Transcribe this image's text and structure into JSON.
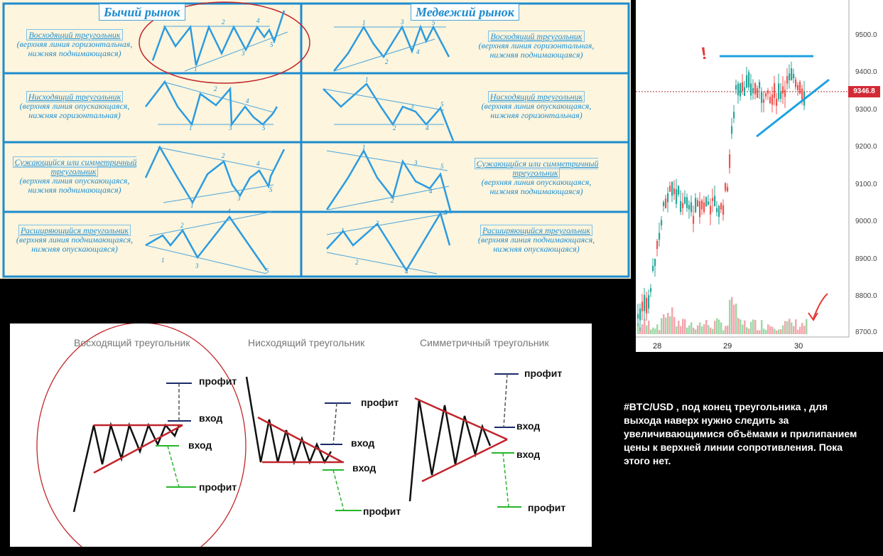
{
  "top": {
    "bull_title": "Бычий рынок",
    "bear_title": "Медвежий рынок",
    "patterns": [
      {
        "name": "Восходящий треугольник",
        "desc": "(верхняя линия горизонтальная, нижняя поднимающаяся)"
      },
      {
        "name": "Нисходящий треугольник",
        "desc": "(верхняя линия опускающаяся, нижняя горизонтальная)"
      },
      {
        "name": "Сужающийся или симметричный треугольник",
        "desc": "(верхняя линия опускающаяся, нижняя поднимающаяся)"
      },
      {
        "name": "Расширяющийся треугольник",
        "desc": "(верхняя линия поднимающаяся, нижняя опускающаяся)"
      }
    ],
    "wave_numbers": [
      "1",
      "2",
      "3",
      "4",
      "5"
    ]
  },
  "bottom": {
    "headers": [
      "Восходящий треугольник",
      "Нисходящий треугольник",
      "Симметричный треугольник"
    ],
    "profit_label": "профит",
    "entry_label": "вход"
  },
  "chart": {
    "prices": [
      "9500.0",
      "9400.0",
      "9300.0",
      "9200.0",
      "9100.0",
      "9000.0",
      "8900.0",
      "8800.0",
      "8700.0"
    ],
    "current_price": "9346.8",
    "dates": [
      "28",
      "29",
      "30"
    ],
    "exclaim": "!",
    "colors": {
      "up": "#26a69a",
      "down": "#ef5350",
      "trend": "#1da1e0",
      "tag": "#d32a36"
    }
  },
  "comment": "#BTC/USD ,  под конец треугольника , для выхода наверх нужно следить за увеличивающимися объёмами и прилипанием цены к верхней линии сопротивления.  Пока этого нет."
}
